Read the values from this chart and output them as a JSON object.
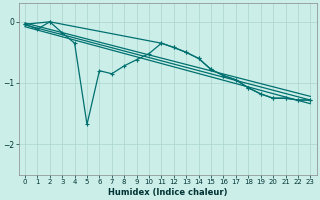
{
  "background_color": "#cceee8",
  "grid_color": "#aad4cc",
  "line_color": "#007070",
  "xlabel": "Humidex (Indice chaleur)",
  "xlim": [
    -0.5,
    23.5
  ],
  "ylim": [
    -2.5,
    0.3
  ],
  "yticks": [
    0,
    -1,
    -2
  ],
  "xticks": [
    0,
    1,
    2,
    3,
    4,
    5,
    6,
    7,
    8,
    9,
    10,
    11,
    12,
    13,
    14,
    15,
    16,
    17,
    18,
    19,
    20,
    21,
    22,
    23
  ],
  "reg_lines": [
    {
      "x": [
        0,
        23
      ],
      "y": [
        -0.02,
        -1.22
      ]
    },
    {
      "x": [
        0,
        23
      ],
      "y": [
        -0.05,
        -1.28
      ]
    },
    {
      "x": [
        0,
        23
      ],
      "y": [
        -0.08,
        -1.34
      ]
    }
  ],
  "jagged_x": [
    0,
    1,
    2,
    3,
    4,
    5,
    6,
    7,
    8,
    9,
    10,
    11,
    12,
    13,
    14,
    15,
    16,
    17,
    18,
    19,
    20,
    21,
    22,
    23
  ],
  "jagged_y": [
    -0.04,
    -0.12,
    0.0,
    -0.18,
    -0.35,
    -1.68,
    -0.8,
    -0.85,
    -0.72,
    -0.62,
    -0.52,
    -0.35,
    -0.42,
    -0.5,
    -0.6,
    -0.78,
    -0.88,
    -0.95,
    -1.08,
    -1.18,
    -1.25,
    -1.25,
    -1.28,
    -1.28
  ],
  "upper_x": [
    0,
    2,
    11,
    12,
    13,
    14,
    15,
    16,
    17,
    18,
    19,
    20,
    21,
    22,
    23
  ],
  "upper_y": [
    -0.04,
    0.0,
    -0.35,
    -0.42,
    -0.5,
    -0.6,
    -0.78,
    -0.88,
    -0.95,
    -1.08,
    -1.18,
    -1.25,
    -1.25,
    -1.28,
    -1.28
  ],
  "xlabel_fontsize": 6,
  "tick_fontsize": 5,
  "line_width": 0.9,
  "marker_size": 3
}
